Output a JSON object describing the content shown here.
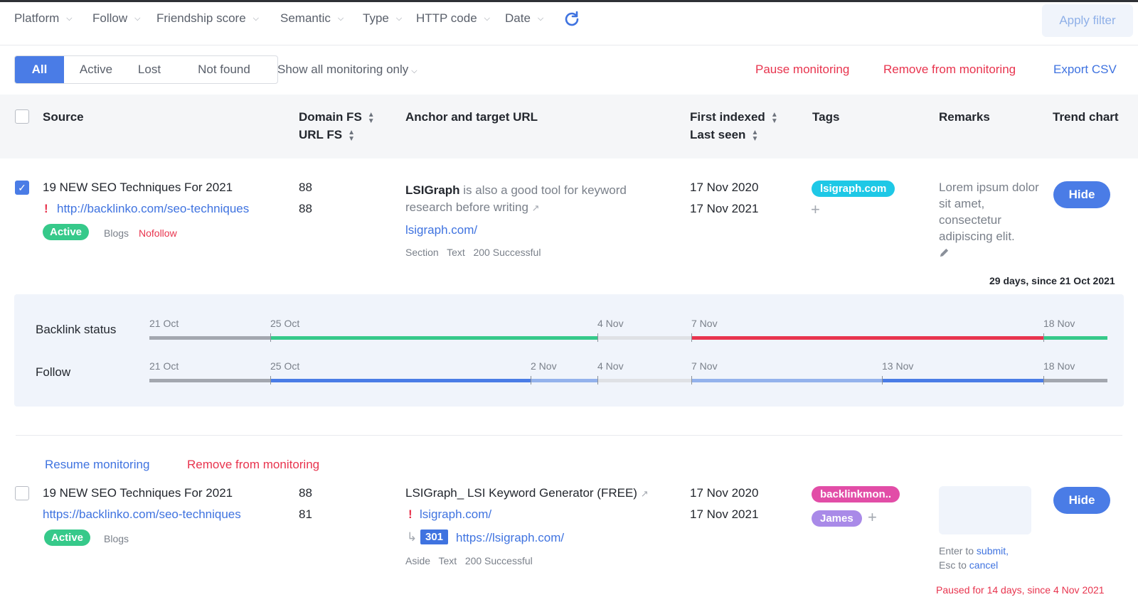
{
  "filters": [
    "Platform",
    "Follow",
    "Friendship score",
    "Semantic",
    "Type",
    "HTTP code",
    "Date"
  ],
  "apply_filter": "Apply filter",
  "status_tabs": [
    "All",
    "Active",
    "Lost",
    "Not found"
  ],
  "show_all": "Show all monitoring only",
  "actions": {
    "pause": "Pause monitoring",
    "remove": "Remove from monitoring",
    "export": "Export CSV"
  },
  "columns": {
    "source": "Source",
    "domain_fs": "Domain FS",
    "url_fs": "URL FS",
    "anchor": "Anchor and target URL",
    "first_indexed": "First indexed",
    "last_seen": "Last seen",
    "tags": "Tags",
    "remarks": "Remarks",
    "trend": "Trend chart"
  },
  "row1": {
    "title": "19 NEW SEO Techniques For 2021",
    "url": "http://backlinko.com/seo-techniques",
    "status": "Active",
    "category": "Blogs",
    "follow": "Nofollow",
    "domain_fs": "88",
    "url_fs": "88",
    "anchor_bold": "LSIGraph",
    "anchor_rest": "is also a good tool for keyword",
    "anchor_line2": "research before writing",
    "target": "lsigraph.com/",
    "meta": [
      "Section",
      "Text",
      "200 Successful"
    ],
    "first_indexed": "17 Nov 2020",
    "last_seen": "17 Nov 2021",
    "tag": "lsigraph.com",
    "remarks": "Lorem ipsum dolor sit amet, consectetur adipiscing elit.",
    "hide": "Hide",
    "duration": "29 days, since 21 Oct 2021"
  },
  "timeline": {
    "backlink_label": "Backlink status",
    "follow_label": "Follow",
    "backlink_dates": [
      "21 Oct",
      "25 Oct",
      "4 Nov",
      "7 Nov",
      "18 Nov"
    ],
    "follow_dates": [
      "21 Oct",
      "25 Oct",
      "2 Nov",
      "4 Nov",
      "7 Nov",
      "13 Nov",
      "18 Nov"
    ],
    "colors": {
      "gray": "#a3a7af",
      "green": "#36c98a",
      "light": "#dfe1e5",
      "red": "#e8344e",
      "blue": "#4a7ce6",
      "lightblue": "#94b2ec"
    }
  },
  "row2": {
    "resume": "Resume monitoring",
    "remove": "Remove from monitoring",
    "title": "19 NEW SEO Techniques For 2021",
    "url": "https://backlinko.com/seo-techniques",
    "status": "Active",
    "category": "Blogs",
    "domain_fs": "88",
    "url_fs": "81",
    "anchor": "LSIGraph_ LSI Keyword Generator (FREE)",
    "target": "lsigraph.com/",
    "redirect_code": "301",
    "redirect_url": "https://lsigraph.com/",
    "meta": [
      "Aside",
      "Text",
      "200 Successful"
    ],
    "first_indexed": "17 Nov 2020",
    "last_seen": "17 Nov 2021",
    "tags": [
      "backlinkmon..",
      "James"
    ],
    "hint_enter": "Enter to",
    "hint_submit": "submit,",
    "hint_esc": "Esc to",
    "hint_cancel": "cancel",
    "hide": "Hide",
    "paused": "Paused for 14 days, since 4 Nov 2021"
  }
}
